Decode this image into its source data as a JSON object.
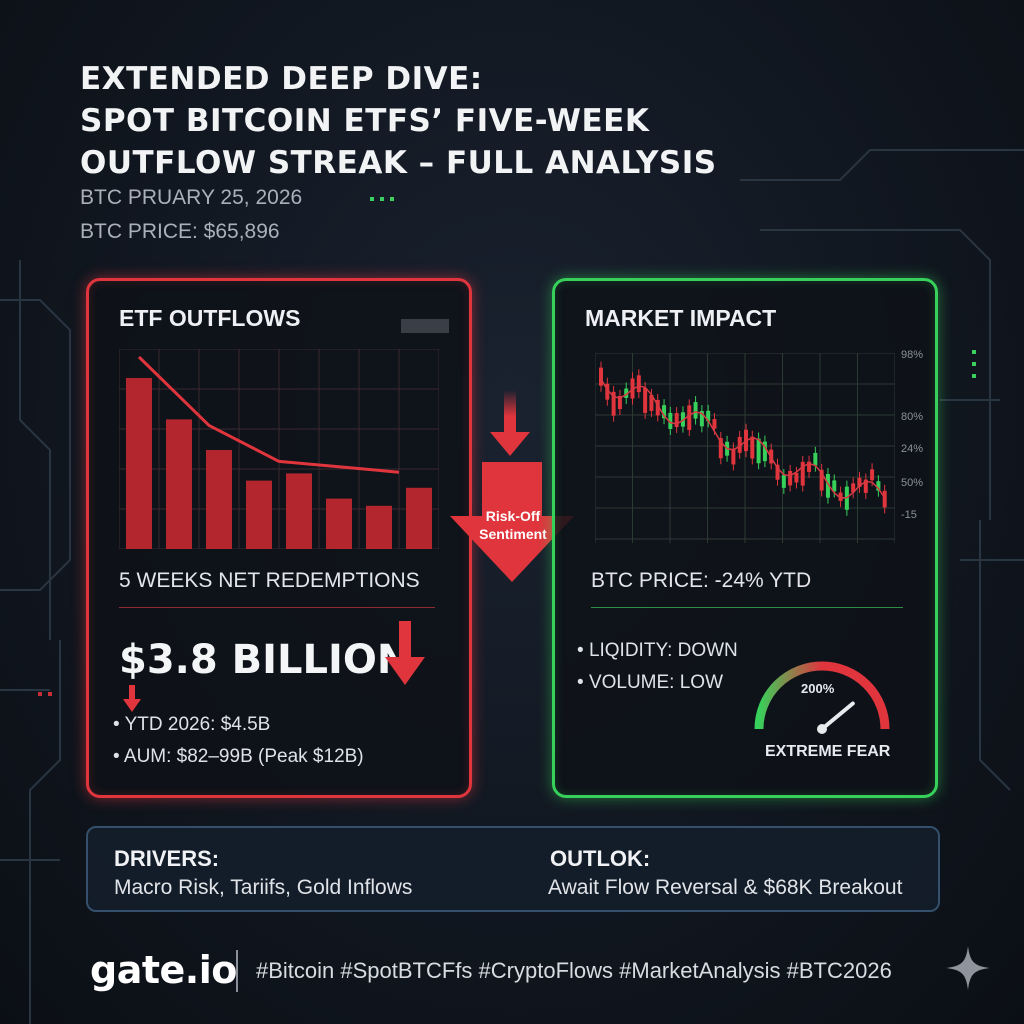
{
  "header": {
    "title_line1": "EXTENDED DEEP DIVE:",
    "title_line2": "SPOT BITCOIN ETFS’ FIVE-WEEK",
    "title_line3": "OUTFLOW STREAK – FULL ANALYSIS",
    "date": "BTC PRUARY 25, 2026",
    "price": "BTC PRICE: $65,896"
  },
  "etf_panel": {
    "title": "ETF OUTFLOWS",
    "caption": "5 WEEKS NET REDEMPTIONS",
    "total": "$3.8 BILLION",
    "bullets": [
      "YTD 2026: $4.5B",
      "AUM: $82–99B (Peak $12B)"
    ],
    "bar_values": [
      0.95,
      0.72,
      0.55,
      0.38,
      0.42,
      0.28,
      0.24,
      0.34
    ],
    "trend_line": [
      1.0,
      0.62,
      0.42,
      0.36
    ]
  },
  "center": {
    "label_line1": "Risk-Off",
    "label_line2": "Sentiment"
  },
  "market_panel": {
    "title": "MARKET IMPACT",
    "y_ticks": [
      "98%",
      "80%",
      "24%",
      "50%",
      "-15"
    ],
    "caption": "BTC PRICE: -24% YTD",
    "bullets": [
      "LIQIDITY: DOWN",
      "VOLUME: LOW"
    ],
    "gauge_value": "200%",
    "gauge_label": "EXTREME FEAR",
    "gauge_level": 0.78
  },
  "drivers": {
    "drivers_title": "DRIVERS:",
    "drivers_text": "Macro Risk, Tariifs, Gold Inflows",
    "outlook_title": "OUTLOK:",
    "outlook_text": "Await Flow Reversal & $68K Breakout"
  },
  "footer": {
    "logo": "gate.io",
    "tags": "#Bitcoin #SpotBTCFfs #CryptoFlows #MarketAnalysis #BTC2026"
  },
  "colors": {
    "red": "#e0353d",
    "green": "#37d05a",
    "bar": "#b3262e"
  },
  "icons": [
    "down-arrow-icon",
    "sparkle-icon"
  ]
}
